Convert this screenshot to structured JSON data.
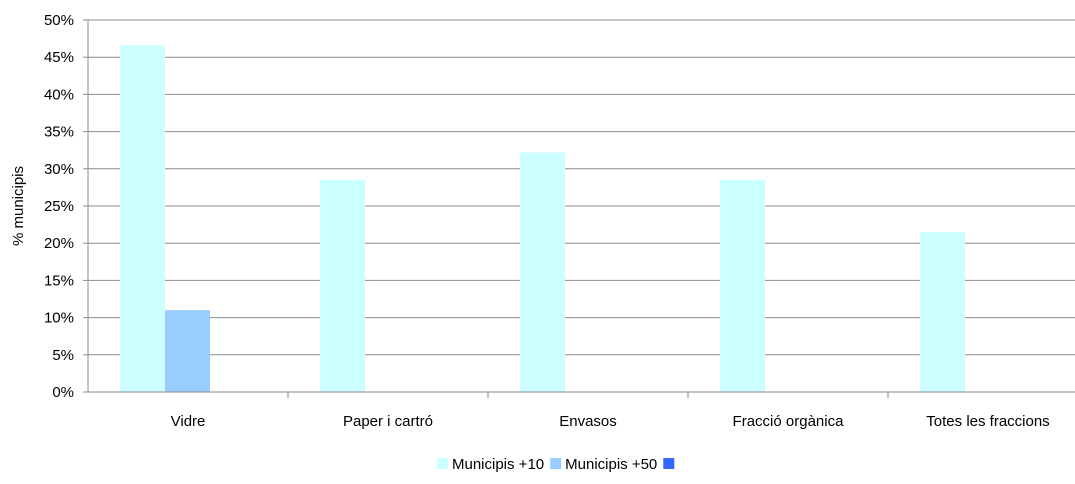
{
  "chart_data": {
    "type": "bar",
    "title": "",
    "xlabel": "",
    "ylabel": "% municipis",
    "ylim": [
      0,
      50
    ],
    "y_ticks": [
      "0%",
      "5%",
      "10%",
      "15%",
      "20%",
      "25%",
      "30%",
      "35%",
      "40%",
      "45%",
      "50%"
    ],
    "y_tick_values": [
      0,
      5,
      10,
      15,
      20,
      25,
      30,
      35,
      40,
      45,
      50
    ],
    "grid": true,
    "legend_position": "bottom",
    "categories": [
      "Vidre",
      "Paper i cartró",
      "Envasos",
      "Fracció orgànica",
      "Totes les fraccions"
    ],
    "series": [
      {
        "name": "Municipis +10",
        "color": "#ccffff",
        "values": [
          46.6,
          28.5,
          32.2,
          28.5,
          21.5
        ]
      },
      {
        "name": "Municipis +50",
        "color": "#99ccff",
        "values": [
          11.0,
          0,
          0,
          0,
          0
        ]
      },
      {
        "name": "",
        "color": "#3366ff",
        "values": [
          0,
          0,
          0,
          0,
          0
        ]
      }
    ]
  }
}
